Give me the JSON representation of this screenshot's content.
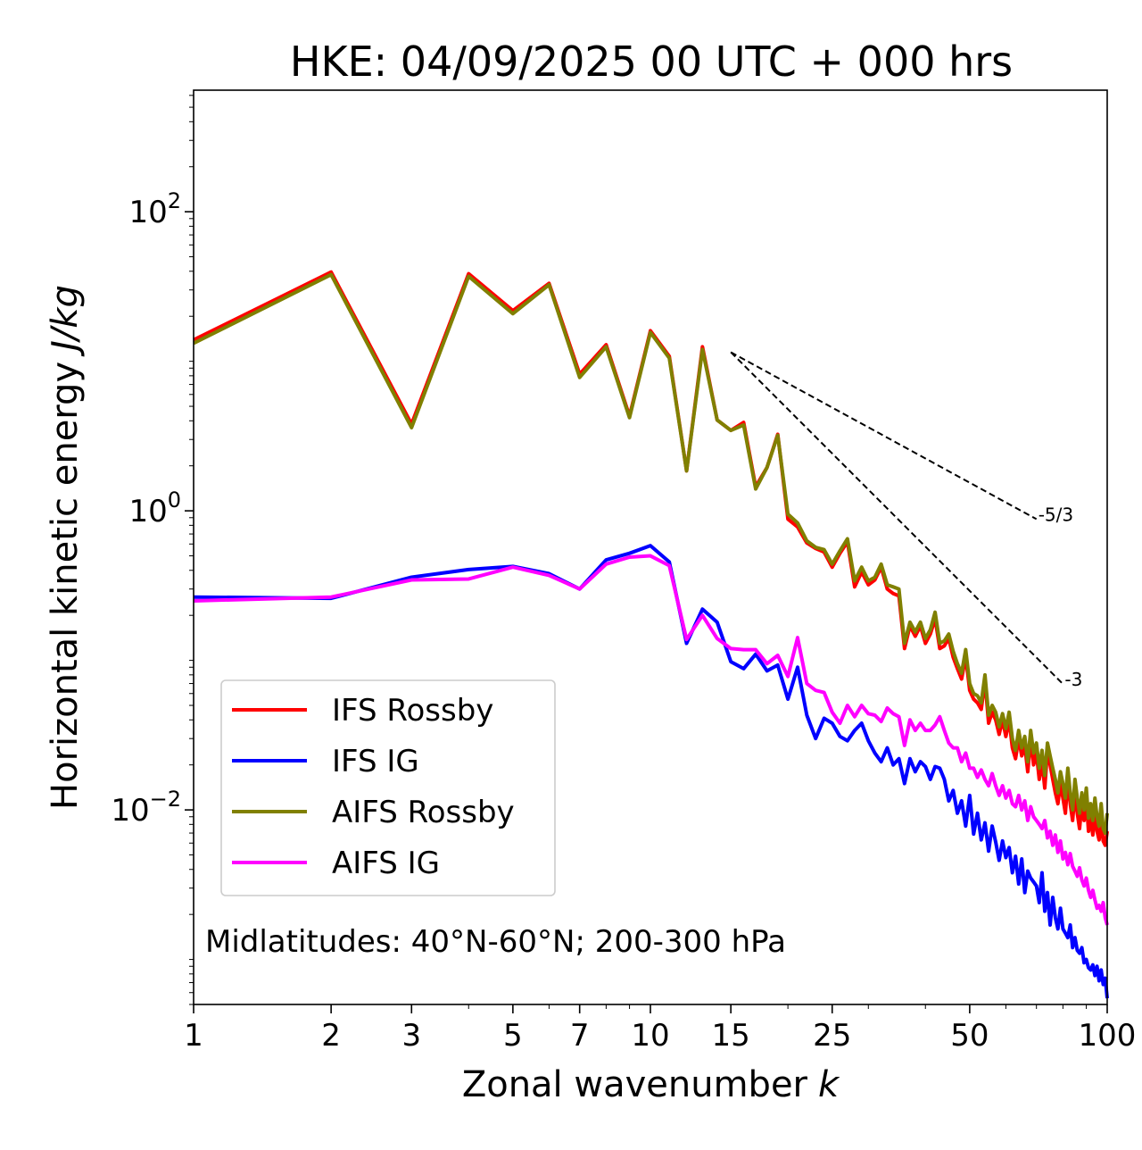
{
  "chart_data": {
    "type": "line",
    "title": "HKE: 04/09/2025 00 UTC + 000 hrs",
    "xlabel": "Zonal wavenumber",
    "xlabel_var": "k",
    "ylabel": "Horizontal kinetic energy",
    "ylabel_unit": "J/kg",
    "xscale": "log",
    "yscale": "log",
    "xlim": [
      1,
      100
    ],
    "ylim": [
      0.0005,
      650
    ],
    "x_ticks": [
      1,
      2,
      3,
      5,
      7,
      10,
      15,
      25,
      50,
      100
    ],
    "x_tick_labels": [
      "1",
      "2",
      "3",
      "5",
      "7",
      "10",
      "15",
      "25",
      "50",
      "100"
    ],
    "y_ticks": [
      {
        "value": 100,
        "base": "10",
        "exp": "2"
      },
      {
        "value": 1,
        "base": "10",
        "exp": "0"
      },
      {
        "value": 0.01,
        "base": "10",
        "exp": "−2"
      }
    ],
    "legend_position": "lower-left",
    "annotation": "Midlatitudes: 40°N-60°N; 200-300 hPa",
    "reference_slopes": [
      {
        "label": "-5/3",
        "x": [
          15,
          70
        ],
        "y": [
          11.5,
          0.88
        ]
      },
      {
        "label": "-3",
        "x": [
          15,
          80
        ],
        "y": [
          11.5,
          0.0695
        ]
      }
    ],
    "x": [
      1,
      2,
      3,
      4,
      5,
      6,
      7,
      8,
      9,
      10,
      11,
      12,
      13,
      14,
      15,
      16,
      17,
      18,
      19,
      20,
      21,
      22,
      23,
      24,
      25,
      26,
      27,
      28,
      29,
      30,
      31,
      32,
      33,
      34,
      35,
      36,
      37,
      38,
      39,
      40,
      41,
      42,
      43,
      44,
      45,
      46,
      47,
      48,
      49,
      50,
      51,
      52,
      53,
      54,
      55,
      56,
      57,
      58,
      59,
      60,
      61,
      62,
      63,
      64,
      65,
      66,
      67,
      68,
      69,
      70,
      71,
      72,
      73,
      74,
      75,
      76,
      77,
      78,
      79,
      80,
      81,
      82,
      83,
      84,
      85,
      86,
      87,
      88,
      89,
      90,
      91,
      92,
      93,
      94,
      95,
      96,
      97,
      98,
      99,
      100
    ],
    "series": [
      {
        "name": "IFS Rossby",
        "color": "#ff0000",
        "values": [
          13.9,
          39.5,
          3.8,
          38.5,
          21.8,
          33.2,
          8.2,
          12.9,
          4.3,
          16.0,
          10.8,
          1.85,
          12.5,
          4.05,
          3.45,
          3.9,
          1.45,
          1.95,
          3.25,
          0.88,
          0.78,
          0.61,
          0.56,
          0.53,
          0.42,
          0.52,
          0.62,
          0.31,
          0.39,
          0.32,
          0.345,
          0.42,
          0.3,
          0.28,
          0.27,
          0.12,
          0.17,
          0.145,
          0.17,
          0.13,
          0.15,
          0.19,
          0.12,
          0.125,
          0.14,
          0.105,
          0.088,
          0.075,
          0.106,
          0.063,
          0.055,
          0.052,
          0.047,
          0.073,
          0.038,
          0.045,
          0.04,
          0.032,
          0.04,
          0.031,
          0.04,
          0.026,
          0.022,
          0.03,
          0.023,
          0.027,
          0.018,
          0.03,
          0.02,
          0.024,
          0.016,
          0.021,
          0.014,
          0.025,
          0.02,
          0.016,
          0.013,
          0.011,
          0.015,
          0.012,
          0.0095,
          0.016,
          0.011,
          0.0085,
          0.013,
          0.0095,
          0.0075,
          0.011,
          0.0085,
          0.012,
          0.0072,
          0.0088,
          0.0068,
          0.0095,
          0.0072,
          0.0063,
          0.0085,
          0.0062,
          0.0058,
          0.0072
        ]
      },
      {
        "name": "IFS IG",
        "color": "#0000ff",
        "values": [
          0.265,
          0.26,
          0.36,
          0.405,
          0.425,
          0.38,
          0.3,
          0.47,
          0.52,
          0.585,
          0.455,
          0.13,
          0.22,
          0.18,
          0.098,
          0.088,
          0.11,
          0.085,
          0.093,
          0.055,
          0.09,
          0.043,
          0.03,
          0.041,
          0.038,
          0.031,
          0.029,
          0.034,
          0.038,
          0.029,
          0.024,
          0.021,
          0.026,
          0.02,
          0.022,
          0.015,
          0.022,
          0.018,
          0.021,
          0.0195,
          0.016,
          0.0195,
          0.019,
          0.016,
          0.0115,
          0.0135,
          0.0095,
          0.0115,
          0.0078,
          0.0125,
          0.0069,
          0.0095,
          0.0063,
          0.0082,
          0.0053,
          0.0078,
          0.0061,
          0.0046,
          0.0062,
          0.0048,
          0.0056,
          0.0038,
          0.0049,
          0.0032,
          0.0047,
          0.0028,
          0.0039,
          0.0035,
          0.0033,
          0.0031,
          0.0024,
          0.0038,
          0.0021,
          0.0028,
          0.0017,
          0.0026,
          0.0019,
          0.0016,
          0.0022,
          0.0016,
          0.0015,
          0.0014,
          0.0017,
          0.0012,
          0.0014,
          0.00115,
          0.0011,
          0.0012,
          0.00095,
          0.001,
          0.00088,
          0.00085,
          0.00092,
          0.00078,
          0.0009,
          0.00072,
          0.00085,
          0.00068,
          0.00075,
          0.00055
        ]
      },
      {
        "name": "AIFS Rossby",
        "color": "#808000",
        "values": [
          13.2,
          38.0,
          3.6,
          37.0,
          20.8,
          32.5,
          7.8,
          12.5,
          4.2,
          15.6,
          10.5,
          1.85,
          12.0,
          4.05,
          3.45,
          3.75,
          1.4,
          1.95,
          3.2,
          0.95,
          0.83,
          0.63,
          0.57,
          0.55,
          0.44,
          0.54,
          0.65,
          0.34,
          0.42,
          0.34,
          0.36,
          0.44,
          0.32,
          0.31,
          0.3,
          0.13,
          0.18,
          0.155,
          0.18,
          0.14,
          0.16,
          0.21,
          0.13,
          0.135,
          0.15,
          0.115,
          0.095,
          0.082,
          0.118,
          0.07,
          0.06,
          0.058,
          0.052,
          0.08,
          0.043,
          0.05,
          0.045,
          0.036,
          0.044,
          0.035,
          0.045,
          0.03,
          0.025,
          0.034,
          0.026,
          0.031,
          0.021,
          0.034,
          0.024,
          0.028,
          0.019,
          0.025,
          0.017,
          0.028,
          0.023,
          0.019,
          0.016,
          0.013,
          0.018,
          0.015,
          0.012,
          0.019,
          0.013,
          0.01,
          0.016,
          0.012,
          0.0095,
          0.013,
          0.01,
          0.014,
          0.0088,
          0.011,
          0.0085,
          0.012,
          0.009,
          0.0078,
          0.011,
          0.0075,
          0.007,
          0.0095
        ]
      },
      {
        "name": "AIFS IG",
        "color": "#ff00ff",
        "values": [
          0.25,
          0.265,
          0.345,
          0.35,
          0.42,
          0.37,
          0.3,
          0.44,
          0.49,
          0.5,
          0.43,
          0.138,
          0.2,
          0.14,
          0.12,
          0.118,
          0.118,
          0.095,
          0.108,
          0.078,
          0.142,
          0.07,
          0.063,
          0.061,
          0.045,
          0.038,
          0.05,
          0.042,
          0.05,
          0.044,
          0.043,
          0.039,
          0.048,
          0.044,
          0.042,
          0.027,
          0.04,
          0.034,
          0.038,
          0.034,
          0.034,
          0.037,
          0.042,
          0.034,
          0.028,
          0.026,
          0.026,
          0.021,
          0.024,
          0.019,
          0.019,
          0.0165,
          0.0185,
          0.016,
          0.0145,
          0.0175,
          0.0145,
          0.0125,
          0.0145,
          0.012,
          0.0135,
          0.011,
          0.0105,
          0.0125,
          0.01,
          0.0115,
          0.0085,
          0.0105,
          0.009,
          0.0085,
          0.008,
          0.0075,
          0.0085,
          0.0065,
          0.0072,
          0.0058,
          0.0068,
          0.0052,
          0.0062,
          0.0047,
          0.0052,
          0.0043,
          0.0051,
          0.0042,
          0.0039,
          0.0036,
          0.0041,
          0.0034,
          0.0031,
          0.0035,
          0.0029,
          0.0026,
          0.0029,
          0.0025,
          0.0022,
          0.0023,
          0.0021,
          0.0024,
          0.0019,
          0.0017
        ]
      }
    ]
  }
}
